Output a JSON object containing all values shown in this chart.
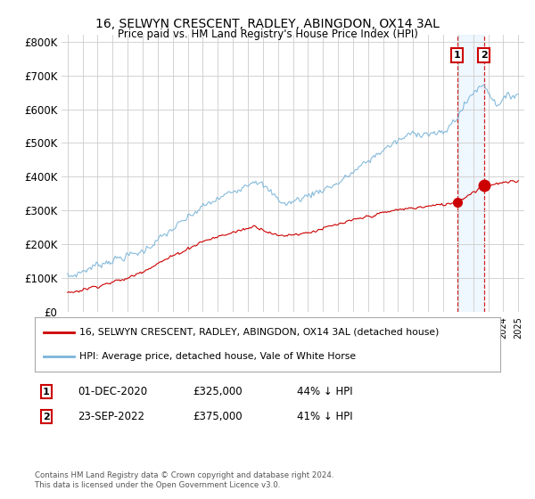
{
  "title": "16, SELWYN CRESCENT, RADLEY, ABINGDON, OX14 3AL",
  "subtitle": "Price paid vs. HM Land Registry's House Price Index (HPI)",
  "ylim": [
    0,
    820000
  ],
  "yticks": [
    0,
    100000,
    200000,
    300000,
    400000,
    500000,
    600000,
    700000,
    800000
  ],
  "ytick_labels": [
    "£0",
    "£100K",
    "£200K",
    "£300K",
    "£400K",
    "£500K",
    "£600K",
    "£700K",
    "£800K"
  ],
  "hpi_color": "#7ab4d8",
  "price_color": "#cc0000",
  "annotation_box_color": "#cc0000",
  "highlight_fill": "#ddeeff",
  "highlight_alpha": 0.45,
  "sale1_date": "01-DEC-2020",
  "sale1_price": 325000,
  "sale1_pct": "44%",
  "sale2_date": "23-SEP-2022",
  "sale2_price": 375000,
  "sale2_pct": "41%",
  "sale1_x": 2020.92,
  "sale2_x": 2022.72,
  "legend_line1": "16, SELWYN CRESCENT, RADLEY, ABINGDON, OX14 3AL (detached house)",
  "legend_line2": "HPI: Average price, detached house, Vale of White Horse",
  "footer": "Contains HM Land Registry data © Crown copyright and database right 2024.\nThis data is licensed under the Open Government Licence v3.0.",
  "background_color": "#ffffff",
  "grid_color": "#cccccc"
}
